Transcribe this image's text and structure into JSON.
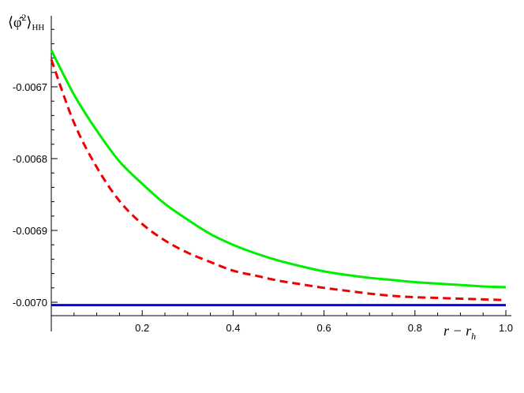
{
  "chart_data": {
    "type": "line",
    "xlabel": "r − r",
    "xlabel_sub": "h",
    "ylabel_main": "⟨φ̂",
    "ylabel_sup": "2",
    "ylabel_close": "⟩",
    "ylabel_sub": "HH",
    "xlim": [
      0,
      1.0
    ],
    "ylim": [
      -0.00702,
      -0.006645
    ],
    "x_ticks": [
      0.2,
      0.4,
      0.6,
      0.8,
      1.0
    ],
    "x_tick_labels": [
      "0.2",
      "0.4",
      "0.6",
      "0.8",
      "1.0"
    ],
    "y_ticks": [
      -0.0067,
      -0.0068,
      -0.0069,
      -0.007
    ],
    "y_tick_labels": [
      "-0.0067",
      "-0.0068",
      "-0.0069",
      "-0.0070"
    ],
    "grid": false,
    "series": [
      {
        "color": "#00ee00",
        "style": "solid",
        "x": [
          0.0,
          0.05,
          0.1,
          0.15,
          0.2,
          0.25,
          0.3,
          0.35,
          0.4,
          0.45,
          0.5,
          0.55,
          0.6,
          0.65,
          0.7,
          0.75,
          0.8,
          0.85,
          0.9,
          0.95,
          1.0
        ],
        "y": [
          -0.006649,
          -0.006711,
          -0.006761,
          -0.006804,
          -0.006835,
          -0.006863,
          -0.006885,
          -0.006905,
          -0.00692,
          -0.006932,
          -0.006942,
          -0.00695,
          -0.006957,
          -0.006962,
          -0.006966,
          -0.006969,
          -0.006972,
          -0.006974,
          -0.006976,
          -0.006978,
          -0.006979
        ]
      },
      {
        "color": "#ee0000",
        "style": "dashed",
        "x": [
          0.0,
          0.05,
          0.1,
          0.15,
          0.2,
          0.25,
          0.3,
          0.35,
          0.4,
          0.45,
          0.5,
          0.55,
          0.6,
          0.65,
          0.7,
          0.75,
          0.8,
          0.85,
          0.9,
          0.95,
          1.0
        ],
        "y": [
          -0.006662,
          -0.00675,
          -0.006812,
          -0.006859,
          -0.006891,
          -0.006914,
          -0.006931,
          -0.006944,
          -0.006956,
          -0.006963,
          -0.00697,
          -0.006975,
          -0.00698,
          -0.006984,
          -0.006988,
          -0.006991,
          -0.006993,
          -0.006994,
          -0.006995,
          -0.006996,
          -0.006997
        ]
      },
      {
        "color": "#0000ee",
        "style": "solid",
        "x": [
          0.0,
          1.0
        ],
        "y": [
          -0.007004,
          -0.007004
        ]
      }
    ]
  }
}
